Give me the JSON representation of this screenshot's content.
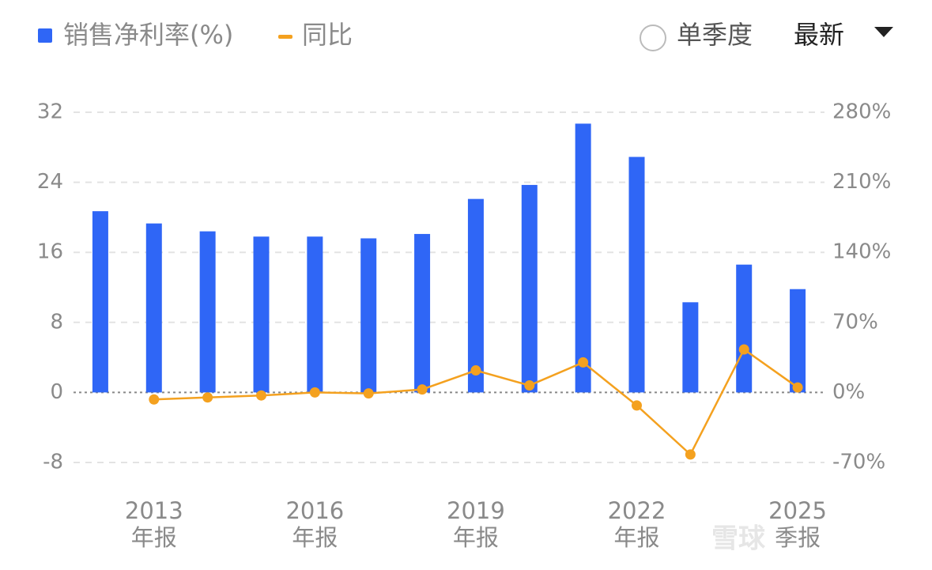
{
  "chart_data": {
    "type": "bar_line",
    "legend": {
      "bar": "销售净利率(%)",
      "line": "同比"
    },
    "controls": {
      "radio": "单季度",
      "dropdown": "最新"
    },
    "watermark": "雪球",
    "categories": [
      null,
      "2013\n年报",
      null,
      null,
      "2016\n年报",
      null,
      null,
      "2019\n年报",
      null,
      null,
      "2022\n年报",
      null,
      null,
      "2025\n季报"
    ],
    "series": [
      {
        "name": "销售净利率(%)",
        "color": "#2f66f6",
        "type": "bar",
        "values": [
          20.7,
          19.3,
          18.4,
          17.8,
          17.8,
          17.6,
          18.1,
          22.1,
          23.7,
          30.7,
          26.9,
          10.3,
          14.6,
          11.8
        ]
      },
      {
        "name": "同比",
        "color": "#f4a11f",
        "type": "line",
        "axis": "y2",
        "values": [
          null,
          -7,
          -5,
          -3,
          0,
          -1,
          3,
          22,
          7,
          30,
          -13,
          -62,
          43,
          5
        ]
      }
    ],
    "ylim": [
      -8,
      32
    ],
    "yticks": [
      -8,
      0,
      8,
      16,
      24,
      32
    ],
    "y2lim": [
      -70,
      280
    ],
    "y2ticks": [
      {
        "value": -70,
        "label": "-70%"
      },
      {
        "value": 0,
        "label": "0%"
      },
      {
        "value": 70,
        "label": "70%"
      },
      {
        "value": 140,
        "label": "140%"
      },
      {
        "value": 210,
        "label": "210%"
      },
      {
        "value": 280,
        "label": "280%"
      }
    ],
    "grid": true
  }
}
